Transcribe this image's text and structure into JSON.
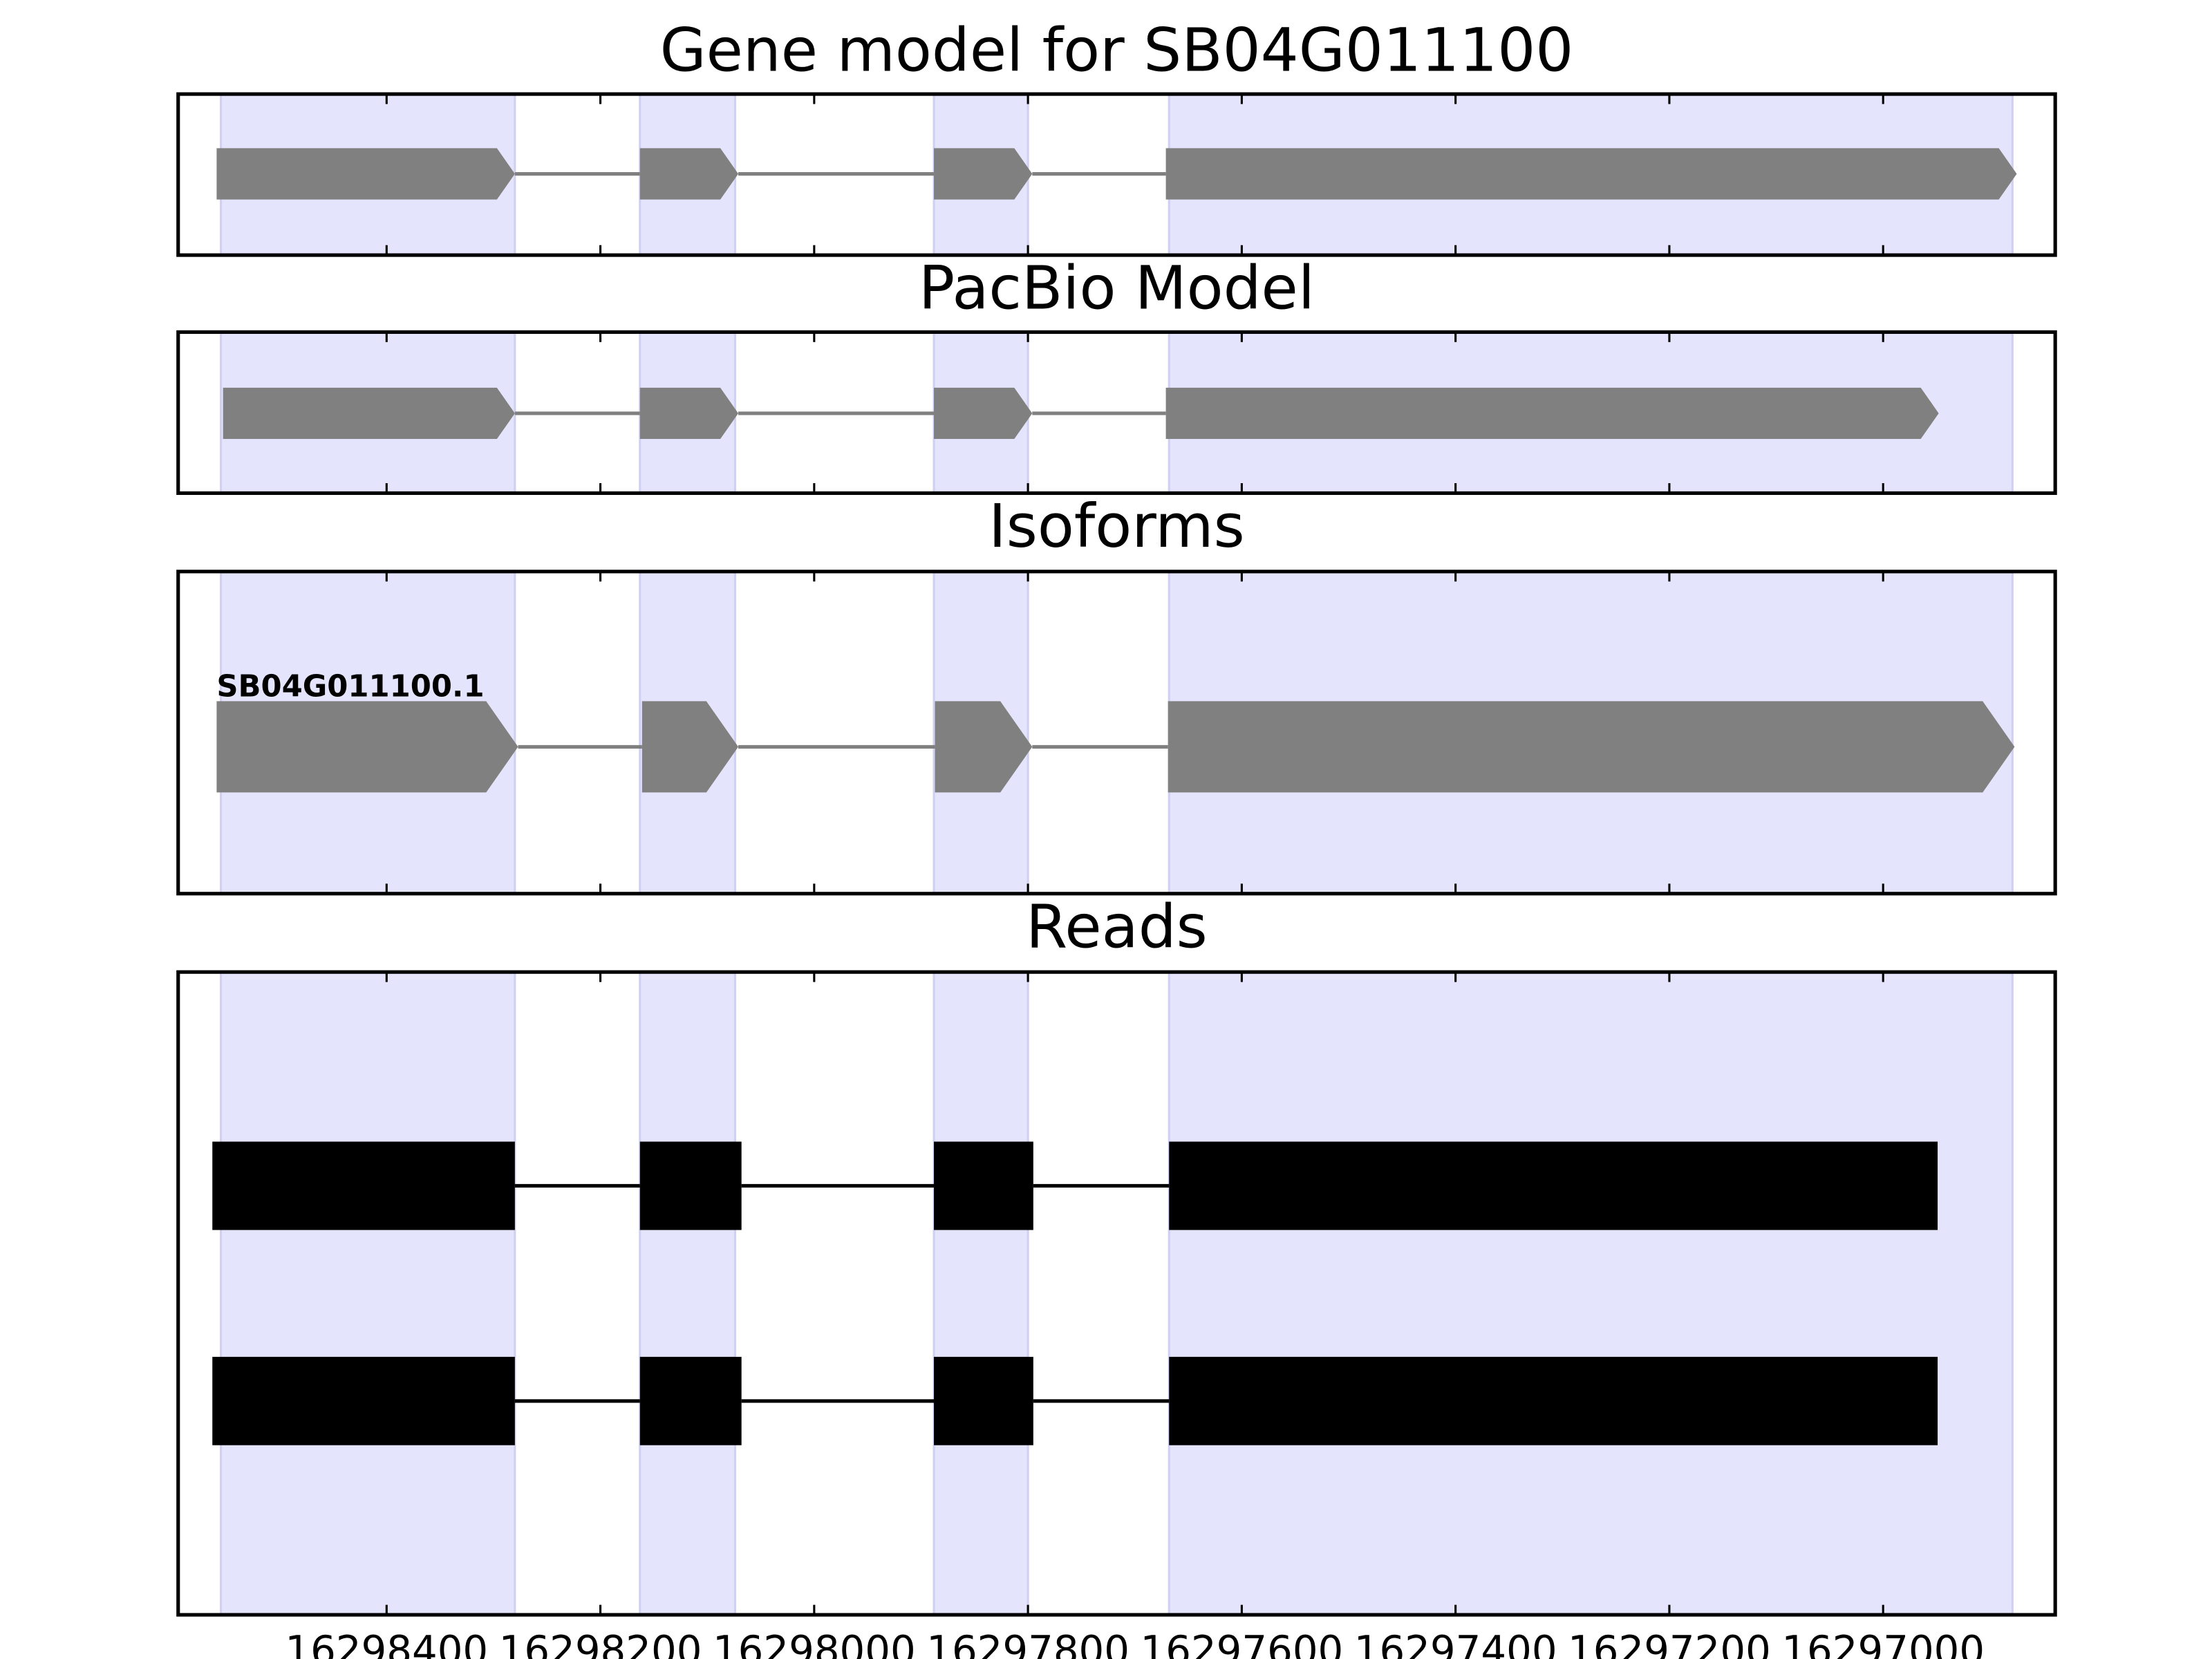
{
  "highlight_regions": {
    "color": "#e4e4fc",
    "regions": [
      [
        16298555,
        16298280
      ],
      [
        16298163,
        16298074
      ],
      [
        16297888,
        16297800
      ],
      [
        16297668,
        16296879
      ]
    ]
  },
  "chart_data": [
    {
      "type": "gene_track",
      "title": "Gene model for SB04G011100",
      "xlim": [
        16298595,
        16296839
      ],
      "style": "arrow",
      "color": "#808080",
      "tracks": [
        {
          "features": [
            [
              16298559,
              16298280
            ],
            [
              16298163,
              16298071
            ],
            [
              16297888,
              16297796
            ],
            [
              16297671,
              16296875
            ]
          ]
        }
      ]
    },
    {
      "type": "gene_track",
      "title": "PacBio Model",
      "xlim": [
        16298595,
        16296839
      ],
      "style": "arrow",
      "color": "#808080",
      "tracks": [
        {
          "features": [
            [
              16298553,
              16298280
            ],
            [
              16298163,
              16298071
            ],
            [
              16297888,
              16297796
            ],
            [
              16297671,
              16296948
            ]
          ]
        }
      ]
    },
    {
      "type": "gene_track",
      "title": "Isoforms",
      "xlim": [
        16298595,
        16296839
      ],
      "style": "arrow",
      "color": "#808080",
      "tracks": [
        {
          "name": "SB04G011100.1",
          "features": [
            [
              16298559,
              16298277
            ],
            [
              16298161,
              16298071
            ],
            [
              16297887,
              16297796
            ],
            [
              16297669,
              16296877
            ]
          ]
        }
      ]
    },
    {
      "type": "gene_track",
      "title": "Reads",
      "xlim": [
        16298595,
        16296839
      ],
      "style": "block",
      "color": "#000000",
      "xticks": [
        16298400,
        16298200,
        16298000,
        16297800,
        16297600,
        16297400,
        16297200,
        16297000
      ],
      "tracks": [
        {
          "features": [
            [
              16298563,
              16298280
            ],
            [
              16298163,
              16298068
            ],
            [
              16297888,
              16297795
            ],
            [
              16297668,
              16296949
            ]
          ]
        },
        {
          "features": [
            [
              16298563,
              16298280
            ],
            [
              16298163,
              16298068
            ],
            [
              16297888,
              16297795
            ],
            [
              16297668,
              16296949
            ]
          ]
        }
      ]
    }
  ]
}
